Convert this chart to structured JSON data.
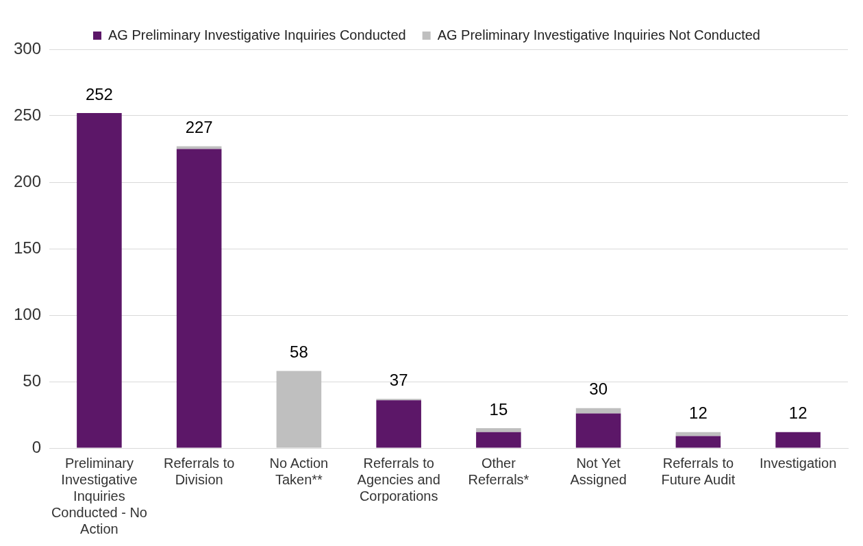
{
  "chart_data": {
    "type": "bar",
    "stacked": true,
    "categories": [
      "Preliminary Investigative Inquiries Conducted - No Action",
      "Referrals to Division",
      "No Action Taken**",
      "Referrals to Agencies and Corporations",
      "Other Referrals*",
      "Not Yet Assigned",
      "Referrals to Future Audit",
      "Investigation"
    ],
    "series": [
      {
        "name": "AG Preliminary Investigative Inquiries Conducted",
        "color": "#5c1768",
        "values": [
          252,
          225,
          0,
          36,
          12,
          26,
          9,
          12
        ]
      },
      {
        "name": "AG Preliminary Investigative Inquiries Not Conducted",
        "color": "#bfbfbf",
        "values": [
          0,
          2,
          58,
          1,
          3,
          4,
          3,
          0
        ]
      }
    ],
    "totals": [
      "252",
      "227",
      "58",
      "37",
      "15",
      "30",
      "12",
      "12"
    ],
    "ylim": [
      0,
      300
    ],
    "yticks": [
      0,
      50,
      100,
      150,
      200,
      250,
      300
    ],
    "grid": "y",
    "legend": "top"
  }
}
